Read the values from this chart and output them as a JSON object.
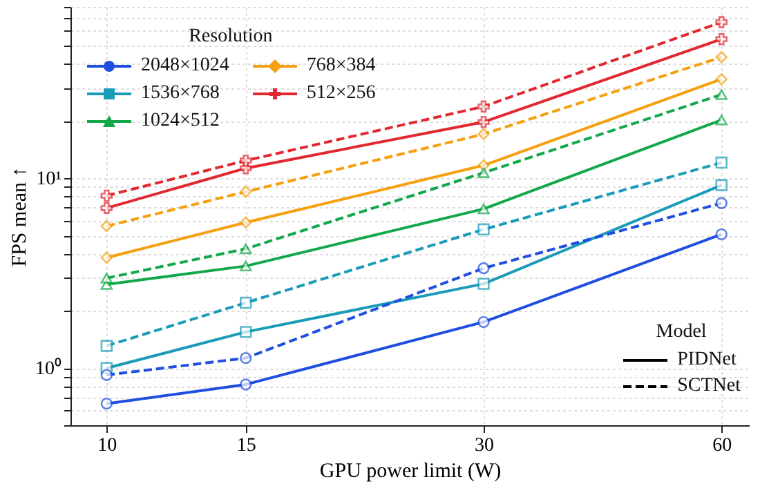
{
  "chart_data": {
    "type": "line",
    "xlabel": "GPU power limit (W)",
    "ylabel": "FPS mean ↑",
    "legend_title": "Resolution",
    "x": [
      10,
      15,
      30,
      60
    ],
    "series": [
      {
        "name": "2048×1024",
        "color": "#1f4fe0",
        "marker": "circle",
        "line_style": "solid",
        "values": [
          0.65,
          0.82,
          1.75,
          5.07
        ]
      },
      {
        "name": "1536×768",
        "color": "#1a9bb8",
        "marker": "square",
        "line_style": "solid",
        "values": [
          1.0,
          1.55,
          2.78,
          9.2
        ]
      },
      {
        "name": "1024×512",
        "color": "#12a84a",
        "marker": "triangle",
        "line_style": "solid",
        "values": [
          2.76,
          3.45,
          6.9,
          20.3
        ]
      },
      {
        "name": "768×384",
        "color": "#f5a00f",
        "marker": "diamond",
        "line_style": "solid",
        "values": [
          3.82,
          5.85,
          11.7,
          33.3
        ]
      },
      {
        "name": "512×256",
        "color": "#e0282e",
        "marker": "cross",
        "line_style": "solid",
        "values": [
          6.97,
          11.3,
          19.8,
          54.1
        ]
      },
      {
        "color": "#1f4fe0",
        "marker": "circle",
        "line_style": "dashed",
        "values": [
          0.92,
          1.13,
          3.36,
          7.4
        ]
      },
      {
        "color": "#1a9bb8",
        "marker": "square",
        "line_style": "dashed",
        "values": [
          1.31,
          2.21,
          5.38,
          12.1
        ]
      },
      {
        "color": "#12a84a",
        "marker": "triangle",
        "line_style": "dashed",
        "values": [
          2.98,
          4.25,
          10.7,
          27.6
        ]
      },
      {
        "color": "#f5a00f",
        "marker": "diamond",
        "line_style": "dashed",
        "values": [
          5.6,
          8.5,
          17.1,
          43.5
        ]
      },
      {
        "color": "#e0282e",
        "marker": "cross",
        "line_style": "dashed",
        "values": [
          8.1,
          12.4,
          23.9,
          66.5
        ]
      }
    ],
    "annotations": [
      "Model",
      "PIDNet",
      "SCTNet"
    ],
    "log": "xy",
    "grid": true,
    "legend": "top left",
    "xlim": [
      9,
      65
    ],
    "xticks": [
      10,
      15,
      30,
      60
    ],
    "ylim": [
      0.5,
      80
    ],
    "yticks": [
      {
        "value": 0.5,
        "label": null
      },
      {
        "value": 0.6,
        "label": null
      },
      {
        "value": 0.7,
        "label": null
      },
      {
        "value": 0.8,
        "label": null
      },
      {
        "value": 0.9,
        "label": null
      },
      {
        "value": 1,
        "label": "10⁰"
      },
      {
        "value": 2,
        "label": null
      },
      {
        "value": 3,
        "label": null
      },
      {
        "value": 4,
        "label": null
      },
      {
        "value": 5,
        "label": null
      },
      {
        "value": 6,
        "label": null
      },
      {
        "value": 7,
        "label": null
      },
      {
        "value": 8,
        "label": null
      },
      {
        "value": 9,
        "label": null
      },
      {
        "value": 10,
        "label": "10¹"
      },
      {
        "value": 20,
        "label": null
      },
      {
        "value": 30,
        "label": null
      },
      {
        "value": 40,
        "label": null
      },
      {
        "value": 50,
        "label": null
      },
      {
        "value": 60,
        "label": null
      },
      {
        "value": 70,
        "label": null
      },
      {
        "value": 80,
        "label": null
      }
    ]
  }
}
